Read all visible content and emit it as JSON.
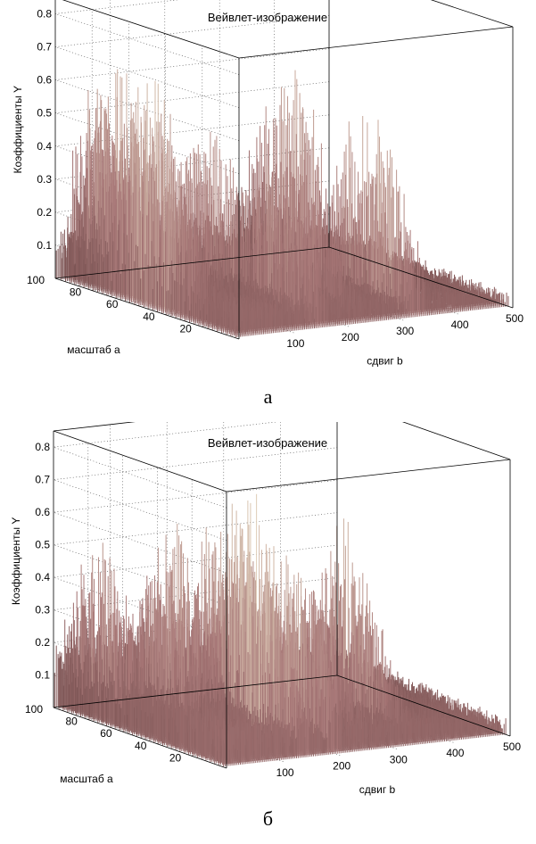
{
  "chart_data": [
    {
      "type": "surface",
      "panel_label": "а",
      "title": "Вейвлет-изображение",
      "xlabel": "сдвиг b",
      "ylabel": "масштаб a",
      "zlabel": "Коэффициенты Y",
      "xlim": [
        0,
        500
      ],
      "ylim": [
        0,
        100
      ],
      "zlim": [
        0,
        0.85
      ],
      "x_ticks": [
        "100",
        "200",
        "300",
        "400",
        "500"
      ],
      "y_ticks": [
        "20",
        "40",
        "60",
        "80",
        "100"
      ],
      "z_ticks": [
        "0.1",
        "0.2",
        "0.3",
        "0.4",
        "0.5",
        "0.6",
        "0.7",
        "0.8"
      ],
      "grid": true,
      "colormap": [
        "#4a2c2c",
        "#a87878",
        "#f2ecd0"
      ],
      "peaks": [
        {
          "b": 35,
          "a": 80,
          "y": 0.75
        },
        {
          "b": 20,
          "a": 55,
          "y": 0.72
        },
        {
          "b": 60,
          "a": 88,
          "y": 0.6
        },
        {
          "b": 100,
          "a": 70,
          "y": 0.55
        },
        {
          "b": 150,
          "a": 60,
          "y": 0.5
        },
        {
          "b": 160,
          "a": 30,
          "y": 0.48
        },
        {
          "b": 240,
          "a": 40,
          "y": 0.4
        },
        {
          "b": 330,
          "a": 70,
          "y": 0.65
        },
        {
          "b": 335,
          "a": 30,
          "y": 0.6
        },
        {
          "b": 400,
          "a": 50,
          "y": 0.15
        }
      ]
    },
    {
      "type": "surface",
      "panel_label": "б",
      "title": "Вейвлет-изображение",
      "xlabel": "сдвиг b",
      "ylabel": "масштаб a",
      "zlabel": "Коэффициенты Y",
      "xlim": [
        0,
        500
      ],
      "ylim": [
        0,
        100
      ],
      "zlim": [
        0,
        0.85
      ],
      "x_ticks": [
        "100",
        "200",
        "300",
        "400",
        "500"
      ],
      "y_ticks": [
        "20",
        "40",
        "60",
        "80",
        "100"
      ],
      "z_ticks": [
        "0.1",
        "0.2",
        "0.3",
        "0.4",
        "0.5",
        "0.6",
        "0.7",
        "0.8"
      ],
      "grid": true,
      "colormap": [
        "#4a2c2c",
        "#a87878",
        "#f2ecd0"
      ],
      "peaks": [
        {
          "b": 25,
          "a": 80,
          "y": 0.55
        },
        {
          "b": 60,
          "a": 60,
          "y": 0.5
        },
        {
          "b": 120,
          "a": 70,
          "y": 0.62
        },
        {
          "b": 150,
          "a": 35,
          "y": 0.78
        },
        {
          "b": 170,
          "a": 55,
          "y": 0.72
        },
        {
          "b": 200,
          "a": 30,
          "y": 0.6
        },
        {
          "b": 230,
          "a": 60,
          "y": 0.5
        },
        {
          "b": 280,
          "a": 45,
          "y": 0.45
        },
        {
          "b": 345,
          "a": 45,
          "y": 0.62
        },
        {
          "b": 420,
          "a": 50,
          "y": 0.15
        }
      ]
    }
  ]
}
